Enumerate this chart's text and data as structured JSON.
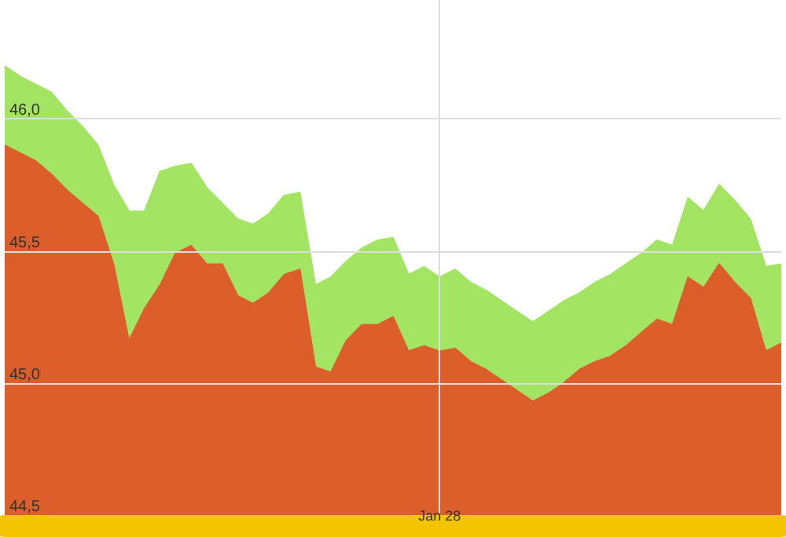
{
  "chart_data": {
    "type": "area",
    "categories": [
      null,
      null,
      null,
      null,
      null,
      null,
      null,
      null,
      null,
      null,
      null,
      null,
      null,
      null,
      null,
      null,
      null,
      null,
      null,
      null,
      null,
      null,
      null,
      null,
      null,
      null,
      null,
      null,
      "Jan 28",
      null,
      null,
      null,
      null,
      null,
      null,
      null,
      null,
      null,
      null,
      null,
      null,
      null,
      null,
      null,
      null,
      null,
      null,
      null,
      null,
      null,
      null
    ],
    "series": [
      {
        "color": "#a3e463",
        "values": [
          46.2,
          46.16,
          46.13,
          46.1,
          46.03,
          45.97,
          45.9,
          45.75,
          45.65,
          45.65,
          45.8,
          45.82,
          45.83,
          45.74,
          45.68,
          45.62,
          45.6,
          45.64,
          45.71,
          45.72,
          45.37,
          45.4,
          45.46,
          45.51,
          45.54,
          45.55,
          45.41,
          45.44,
          45.4,
          45.43,
          45.38,
          45.35,
          45.31,
          45.27,
          45.23,
          45.27,
          45.31,
          45.34,
          45.38,
          45.41,
          45.45,
          45.49,
          45.54,
          45.52,
          45.7,
          45.65,
          45.75,
          45.69,
          45.62,
          45.44,
          45.45
        ]
      },
      {
        "color": "#dc5e2b",
        "values": [
          45.9,
          45.87,
          45.84,
          45.79,
          45.73,
          45.68,
          45.63,
          45.45,
          45.16,
          45.28,
          45.37,
          45.49,
          45.52,
          45.45,
          45.45,
          45.33,
          45.3,
          45.34,
          45.41,
          45.43,
          45.06,
          45.04,
          45.16,
          45.22,
          45.22,
          45.25,
          45.12,
          45.14,
          45.12,
          45.13,
          45.08,
          45.05,
          45.01,
          44.97,
          44.93,
          44.96,
          45.0,
          45.05,
          45.08,
          45.1,
          45.14,
          45.19,
          45.24,
          45.22,
          45.4,
          45.36,
          45.45,
          45.38,
          45.32,
          45.12,
          45.15
        ]
      }
    ],
    "ylim": [
      44.5,
      46.45
    ],
    "yticks": [
      {
        "value": 44.5,
        "label": "44,5"
      },
      {
        "value": 45.0,
        "label": "45,0"
      },
      {
        "value": 45.5,
        "label": "45,5"
      },
      {
        "value": 46.0,
        "label": "46,0"
      }
    ],
    "grid": true
  }
}
